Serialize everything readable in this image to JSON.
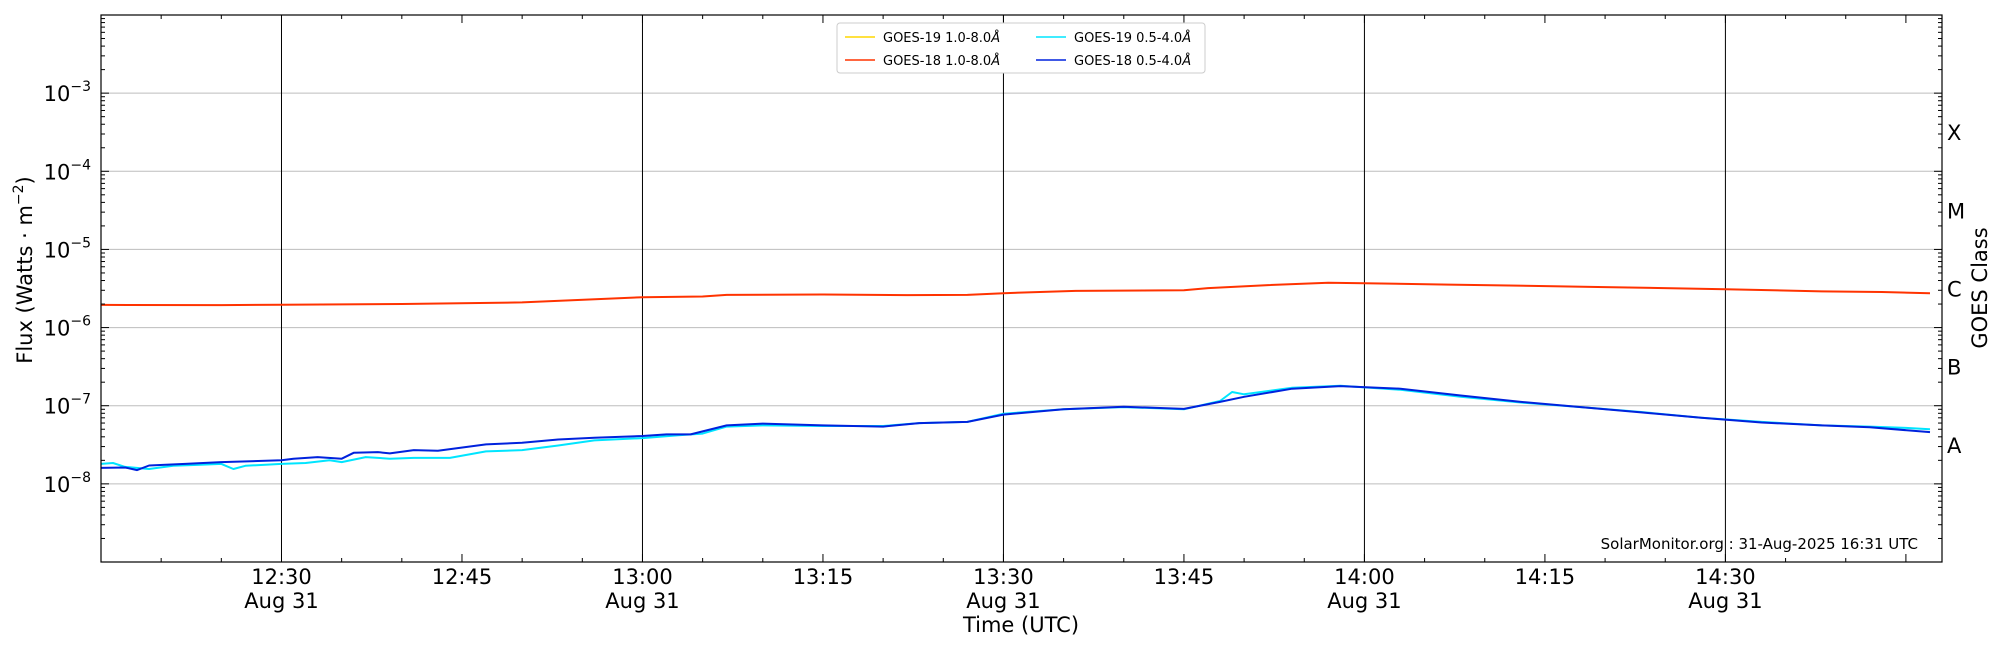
{
  "chart_data": {
    "type": "line",
    "xlabel": "Time (UTC)",
    "ylabel_main": "Flux (Watts · m",
    "ylabel_sup": "−2",
    "ylabel_end": ")",
    "right_ylabel": "GOES Class",
    "y_scale": "log",
    "ylim": [
      1e-09,
      0.01
    ],
    "xlim": [
      "12:15",
      "14:48"
    ],
    "grid": "horizontal at decades",
    "legend_position": "top-center",
    "y_ticks": [
      {
        "value": 1e-08,
        "base": "10",
        "exp": "−8"
      },
      {
        "value": 1e-07,
        "base": "10",
        "exp": "−7"
      },
      {
        "value": 1e-06,
        "base": "10",
        "exp": "−6"
      },
      {
        "value": 1e-05,
        "base": "10",
        "exp": "−5"
      },
      {
        "value": 0.0001,
        "base": "10",
        "exp": "−4"
      },
      {
        "value": 0.001,
        "base": "10",
        "exp": "−3"
      }
    ],
    "x_ticks": [
      {
        "time": "12:30",
        "label": "12:30",
        "date": "Aug 31"
      },
      {
        "time": "12:45",
        "label": "12:45",
        "date": ""
      },
      {
        "time": "13:00",
        "label": "13:00",
        "date": "Aug 31"
      },
      {
        "time": "13:15",
        "label": "13:15",
        "date": ""
      },
      {
        "time": "13:30",
        "label": "13:30",
        "date": "Aug 31"
      },
      {
        "time": "13:45",
        "label": "13:45",
        "date": ""
      },
      {
        "time": "14:00",
        "label": "14:00",
        "date": "Aug 31"
      },
      {
        "time": "14:15",
        "label": "14:15",
        "date": ""
      },
      {
        "time": "14:30",
        "label": "14:30",
        "date": "Aug 31"
      }
    ],
    "vertical_lines": [
      "12:30",
      "13:00",
      "13:30",
      "14:00",
      "14:30"
    ],
    "goes_classes": [
      {
        "label": "A",
        "value": 3.16e-08
      },
      {
        "label": "B",
        "value": 3.16e-07
      },
      {
        "label": "C",
        "value": 3.16e-06
      },
      {
        "label": "M",
        "value": 3.16e-05
      },
      {
        "label": "X",
        "value": 0.000316
      }
    ],
    "series": [
      {
        "name": "GOES-19 1.0-8.0",
        "unit": "Å",
        "color": "#ffd700",
        "points": []
      },
      {
        "name": "GOES-18 1.0-8.0",
        "unit": "Å",
        "color": "#ff3300",
        "points": [
          [
            "12:15",
            1.95e-06
          ],
          [
            "12:25",
            1.94e-06
          ],
          [
            "12:30",
            1.96e-06
          ],
          [
            "12:40",
            2e-06
          ],
          [
            "12:50",
            2.1e-06
          ],
          [
            "13:00",
            2.45e-06
          ],
          [
            "13:05",
            2.5e-06
          ],
          [
            "13:07",
            2.62e-06
          ],
          [
            "13:15",
            2.65e-06
          ],
          [
            "13:22",
            2.6e-06
          ],
          [
            "13:27",
            2.62e-06
          ],
          [
            "13:30",
            2.75e-06
          ],
          [
            "13:36",
            2.95e-06
          ],
          [
            "13:45",
            3e-06
          ],
          [
            "13:47",
            3.2e-06
          ],
          [
            "13:52",
            3.5e-06
          ],
          [
            "13:57",
            3.75e-06
          ],
          [
            "14:00",
            3.7e-06
          ],
          [
            "14:07",
            3.55e-06
          ],
          [
            "14:12",
            3.45e-06
          ],
          [
            "14:20",
            3.3e-06
          ],
          [
            "14:30",
            3.1e-06
          ],
          [
            "14:38",
            2.9e-06
          ],
          [
            "14:43",
            2.85e-06
          ],
          [
            "14:47",
            2.75e-06
          ]
        ]
      },
      {
        "name": "GOES-19 0.5-4.0",
        "unit": "Å",
        "color": "#00e5ff",
        "points": [
          [
            "12:15",
            1.8e-08
          ],
          [
            "12:16",
            1.85e-08
          ],
          [
            "12:17",
            1.65e-08
          ],
          [
            "12:19",
            1.55e-08
          ],
          [
            "12:21",
            1.7e-08
          ],
          [
            "12:23",
            1.75e-08
          ],
          [
            "12:25",
            1.8e-08
          ],
          [
            "12:26",
            1.55e-08
          ],
          [
            "12:27",
            1.7e-08
          ],
          [
            "12:30",
            1.8e-08
          ],
          [
            "12:32",
            1.85e-08
          ],
          [
            "12:34",
            2e-08
          ],
          [
            "12:35",
            1.9e-08
          ],
          [
            "12:37",
            2.2e-08
          ],
          [
            "12:39",
            2.1e-08
          ],
          [
            "12:41",
            2.15e-08
          ],
          [
            "12:44",
            2.15e-08
          ],
          [
            "12:47",
            2.6e-08
          ],
          [
            "12:50",
            2.7e-08
          ],
          [
            "12:53",
            3.1e-08
          ],
          [
            "12:56",
            3.6e-08
          ],
          [
            "13:00",
            3.85e-08
          ],
          [
            "13:03",
            4.2e-08
          ],
          [
            "13:05",
            4.4e-08
          ],
          [
            "13:07",
            5.4e-08
          ],
          [
            "13:10",
            5.6e-08
          ],
          [
            "13:15",
            5.5e-08
          ],
          [
            "13:20",
            5.5e-08
          ],
          [
            "13:23",
            6e-08
          ],
          [
            "13:27",
            6.2e-08
          ],
          [
            "13:30",
            7.9e-08
          ],
          [
            "13:35",
            9e-08
          ],
          [
            "13:40",
            9.6e-08
          ],
          [
            "13:45",
            9e-08
          ],
          [
            "13:48",
            1.15e-07
          ],
          [
            "13:49",
            1.5e-07
          ],
          [
            "13:50",
            1.4e-07
          ],
          [
            "13:54",
            1.7e-07
          ],
          [
            "13:58",
            1.8e-07
          ],
          [
            "14:03",
            1.6e-07
          ],
          [
            "14:08",
            1.3e-07
          ],
          [
            "14:13",
            1.1e-07
          ],
          [
            "14:18",
            9.6e-08
          ],
          [
            "14:23",
            8.3e-08
          ],
          [
            "14:28",
            7e-08
          ],
          [
            "14:33",
            6.2e-08
          ],
          [
            "14:38",
            5.6e-08
          ],
          [
            "14:42",
            5.4e-08
          ],
          [
            "14:45",
            5.2e-08
          ],
          [
            "14:47",
            5e-08
          ]
        ]
      },
      {
        "name": "GOES-18 0.5-4.0",
        "unit": "Å",
        "color": "#0022dd",
        "points": [
          [
            "12:15",
            1.6e-08
          ],
          [
            "12:17",
            1.62e-08
          ],
          [
            "12:18",
            1.5e-08
          ],
          [
            "12:19",
            1.72e-08
          ],
          [
            "12:22",
            1.8e-08
          ],
          [
            "12:25",
            1.9e-08
          ],
          [
            "12:30",
            2e-08
          ],
          [
            "12:31",
            2.1e-08
          ],
          [
            "12:33",
            2.2e-08
          ],
          [
            "12:35",
            2.1e-08
          ],
          [
            "12:36",
            2.5e-08
          ],
          [
            "12:38",
            2.55e-08
          ],
          [
            "12:39",
            2.45e-08
          ],
          [
            "12:41",
            2.7e-08
          ],
          [
            "12:43",
            2.65e-08
          ],
          [
            "12:47",
            3.2e-08
          ],
          [
            "12:50",
            3.35e-08
          ],
          [
            "12:53",
            3.7e-08
          ],
          [
            "12:56",
            3.9e-08
          ],
          [
            "13:00",
            4.1e-08
          ],
          [
            "13:02",
            4.3e-08
          ],
          [
            "13:04",
            4.3e-08
          ],
          [
            "13:07",
            5.6e-08
          ],
          [
            "13:10",
            5.9e-08
          ],
          [
            "13:15",
            5.6e-08
          ],
          [
            "13:20",
            5.4e-08
          ],
          [
            "13:23",
            6e-08
          ],
          [
            "13:27",
            6.2e-08
          ],
          [
            "13:30",
            7.7e-08
          ],
          [
            "13:35",
            9e-08
          ],
          [
            "13:40",
            9.7e-08
          ],
          [
            "13:45",
            9.1e-08
          ],
          [
            "13:48",
            1.12e-07
          ],
          [
            "13:50",
            1.3e-07
          ],
          [
            "13:54",
            1.65e-07
          ],
          [
            "13:58",
            1.78e-07
          ],
          [
            "14:03",
            1.65e-07
          ],
          [
            "14:08",
            1.35e-07
          ],
          [
            "14:13",
            1.12e-07
          ],
          [
            "14:18",
            9.6e-08
          ],
          [
            "14:23",
            8.2e-08
          ],
          [
            "14:28",
            7e-08
          ],
          [
            "14:33",
            6.1e-08
          ],
          [
            "14:38",
            5.6e-08
          ],
          [
            "14:42",
            5.3e-08
          ],
          [
            "14:47",
            4.6e-08
          ]
        ]
      }
    ],
    "annotation": "SolarMonitor.org : 31-Aug-2025 16:31 UTC"
  }
}
